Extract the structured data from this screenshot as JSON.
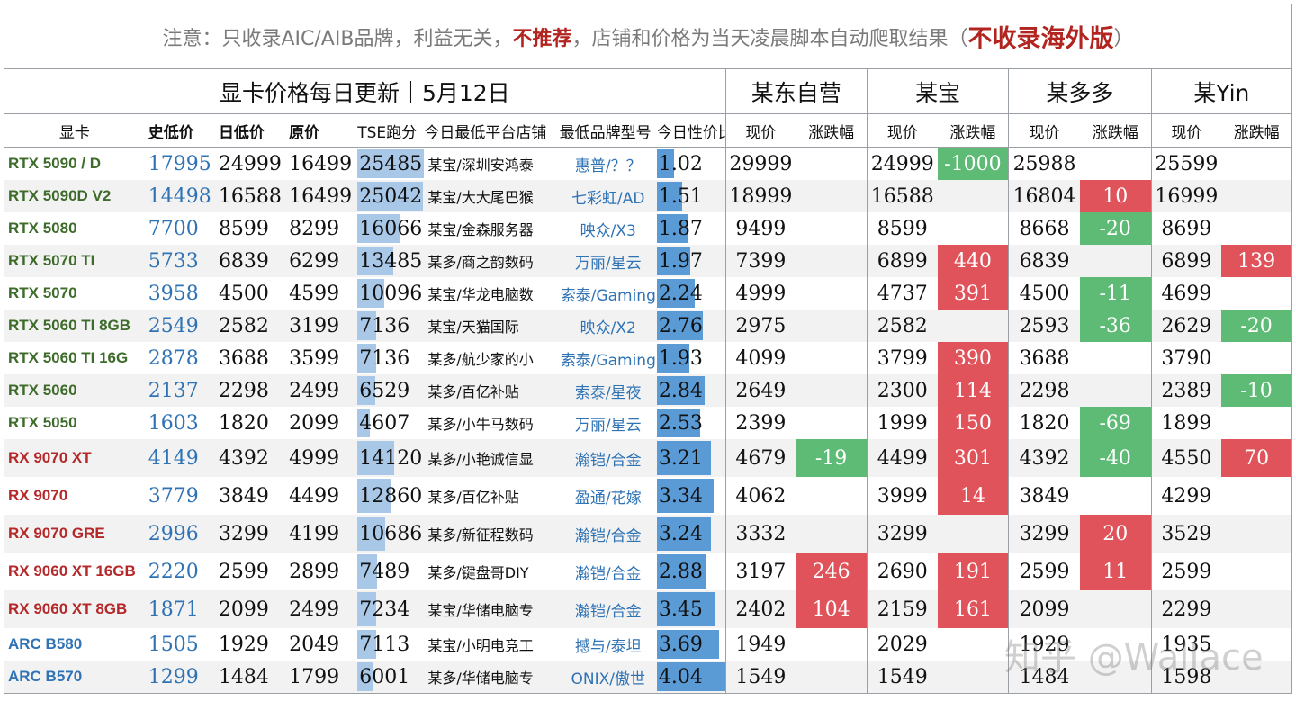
{
  "notice": {
    "part1": "注意：只收录AIC/AIB品牌，利益无关，",
    "part2": "不推荐",
    "part3": "，店铺和价格为当天凌晨脚本自动爬取结果（",
    "part4": "不收录海外版",
    "part5": "）"
  },
  "header": {
    "title": "显卡价格每日更新｜5月12日",
    "platforms": [
      "某东自营",
      "某宝",
      "某多多",
      "某Yin"
    ]
  },
  "columns": {
    "gpu": "显卡",
    "hist_low": "史低价",
    "day_low": "日低价",
    "msrp": "原价",
    "tse": "TSE跑分",
    "shop": "今日最低平台店铺",
    "brand": "最低品牌型号",
    "value": "今日性价比",
    "price": "现价",
    "change": "涨跌幅"
  },
  "colors": {
    "nvidia": "#3d6b2a",
    "amd": "#b5282a",
    "intel": "#2f73b5",
    "up": "#e0535a",
    "down": "#5dbb76",
    "bar": "#a9c8e8",
    "bar_dark": "#5b9bd5"
  },
  "rows": [
    {
      "gpu": "RTX 5090 / D",
      "vendor": "nv",
      "hist": "17995",
      "day": "24999",
      "msrp": "16499",
      "tse": "25485",
      "tse_fill": 1.0,
      "shop": "某宝/深圳安鸿泰",
      "brand": "惠普/？？",
      "value": "1.02",
      "value_fill": 0.25,
      "jd": "29999",
      "jd_chg": "",
      "tb": "24999",
      "tb_chg": "-1000",
      "tb_dir": "down",
      "pdd": "25988",
      "pdd_chg": "",
      "yin": "25599",
      "yin_chg": ""
    },
    {
      "gpu": "RTX 5090D V2",
      "vendor": "nv",
      "hist": "14498",
      "day": "16588",
      "msrp": "16499",
      "tse": "25042",
      "tse_fill": 0.98,
      "shop": "某宝/大大尾巴猴",
      "brand": "七彩虹/AD",
      "value": "1.51",
      "value_fill": 0.37,
      "jd": "18999",
      "jd_chg": "",
      "tb": "16588",
      "tb_chg": "",
      "pdd": "16804",
      "pdd_chg": "10",
      "pdd_dir": "up",
      "yin": "16999",
      "yin_chg": ""
    },
    {
      "gpu": "RTX 5080",
      "vendor": "nv",
      "hist": "7700",
      "day": "8599",
      "msrp": "8299",
      "tse": "16066",
      "tse_fill": 0.63,
      "shop": "某宝/金森服务器",
      "brand": "映众/X3",
      "value": "1.87",
      "value_fill": 0.46,
      "jd": "9499",
      "jd_chg": "",
      "tb": "8599",
      "tb_chg": "",
      "pdd": "8668",
      "pdd_chg": "-20",
      "pdd_dir": "down",
      "yin": "8699",
      "yin_chg": ""
    },
    {
      "gpu": "RTX 5070 TI",
      "vendor": "nv",
      "hist": "5733",
      "day": "6839",
      "msrp": "6299",
      "tse": "13485",
      "tse_fill": 0.53,
      "shop": "某多/商之韵数码",
      "brand": "万丽/星云",
      "value": "1.97",
      "value_fill": 0.49,
      "jd": "7399",
      "jd_chg": "",
      "tb": "6899",
      "tb_chg": "440",
      "tb_dir": "up",
      "pdd": "6839",
      "pdd_chg": "",
      "yin": "6899",
      "yin_chg": "139",
      "yin_dir": "up"
    },
    {
      "gpu": "RTX 5070",
      "vendor": "nv",
      "hist": "3958",
      "day": "4500",
      "msrp": "4599",
      "tse": "10096",
      "tse_fill": 0.4,
      "shop": "某宝/华龙电脑数",
      "brand": "索泰/Gaming",
      "value": "2.24",
      "value_fill": 0.55,
      "jd": "4999",
      "jd_chg": "",
      "tb": "4737",
      "tb_chg": "391",
      "tb_dir": "up",
      "pdd": "4500",
      "pdd_chg": "-11",
      "pdd_dir": "down",
      "yin": "4699",
      "yin_chg": ""
    },
    {
      "gpu": "RTX 5060 TI 8GB",
      "vendor": "nv",
      "hist": "2549",
      "day": "2582",
      "msrp": "3199",
      "tse": "7136",
      "tse_fill": 0.28,
      "shop": "某宝/天猫国际",
      "brand": "映众/X2",
      "value": "2.76",
      "value_fill": 0.68,
      "jd": "2975",
      "jd_chg": "",
      "tb": "2582",
      "tb_chg": "",
      "pdd": "2593",
      "pdd_chg": "-36",
      "pdd_dir": "down",
      "yin": "2629",
      "yin_chg": "-20",
      "yin_dir": "down"
    },
    {
      "gpu": "RTX 5060 TI 16G",
      "vendor": "nv",
      "hist": "2878",
      "day": "3688",
      "msrp": "3599",
      "tse": "7136",
      "tse_fill": 0.28,
      "shop": "某多/航少家的小",
      "brand": "索泰/Gaming",
      "value": "1.93",
      "value_fill": 0.48,
      "jd": "4099",
      "jd_chg": "",
      "tb": "3799",
      "tb_chg": "390",
      "tb_dir": "up",
      "pdd": "3688",
      "pdd_chg": "",
      "yin": "3790",
      "yin_chg": ""
    },
    {
      "gpu": "RTX 5060",
      "vendor": "nv",
      "hist": "2137",
      "day": "2298",
      "msrp": "2499",
      "tse": "6529",
      "tse_fill": 0.26,
      "shop": "某多/百亿补贴",
      "brand": "索泰/星夜",
      "value": "2.84",
      "value_fill": 0.7,
      "jd": "2649",
      "jd_chg": "",
      "tb": "2300",
      "tb_chg": "114",
      "tb_dir": "up",
      "pdd": "2298",
      "pdd_chg": "",
      "yin": "2389",
      "yin_chg": "-10",
      "yin_dir": "down"
    },
    {
      "gpu": "RTX 5050",
      "vendor": "nv",
      "hist": "1603",
      "day": "1820",
      "msrp": "2099",
      "tse": "4607",
      "tse_fill": 0.18,
      "shop": "某多/小牛马数码",
      "brand": "万丽/星云",
      "value": "2.53",
      "value_fill": 0.63,
      "jd": "2399",
      "jd_chg": "",
      "tb": "1999",
      "tb_chg": "150",
      "tb_dir": "up",
      "pdd": "1820",
      "pdd_chg": "-69",
      "pdd_dir": "down",
      "yin": "1899",
      "yin_chg": ""
    },
    {
      "gpu": "RX 9070 XT",
      "vendor": "amd",
      "hist": "4149",
      "day": "4392",
      "msrp": "4999",
      "tse": "14120",
      "tse_fill": 0.55,
      "shop": "某多/小艳诚信显",
      "brand": "瀚铠/合金",
      "value": "3.21",
      "value_fill": 0.79,
      "jd": "4679",
      "jd_chg": "-19",
      "jd_dir": "down",
      "tb": "4499",
      "tb_chg": "301",
      "tb_dir": "up",
      "pdd": "4392",
      "pdd_chg": "-40",
      "pdd_dir": "down",
      "yin": "4550",
      "yin_chg": "70",
      "yin_dir": "up"
    },
    {
      "gpu": "RX 9070",
      "vendor": "amd",
      "hist": "3779",
      "day": "3849",
      "msrp": "4499",
      "tse": "12860",
      "tse_fill": 0.5,
      "shop": "某多/百亿补贴",
      "brand": "盈通/花嫁",
      "value": "3.34",
      "value_fill": 0.83,
      "jd": "4062",
      "jd_chg": "",
      "tb": "3999",
      "tb_chg": "14",
      "tb_dir": "up",
      "pdd": "3849",
      "pdd_chg": "",
      "yin": "4299",
      "yin_chg": ""
    },
    {
      "gpu": "RX 9070 GRE",
      "vendor": "amd",
      "hist": "2996",
      "day": "3299",
      "msrp": "4199",
      "tse": "10686",
      "tse_fill": 0.42,
      "shop": "某多/新征程数码",
      "brand": "瀚铠/合金",
      "value": "3.24",
      "value_fill": 0.8,
      "jd": "3332",
      "jd_chg": "",
      "tb": "3299",
      "tb_chg": "",
      "pdd": "3299",
      "pdd_chg": "20",
      "pdd_dir": "up",
      "yin": "3529",
      "yin_chg": ""
    },
    {
      "gpu": "RX 9060 XT 16GB",
      "vendor": "amd",
      "hist": "2220",
      "day": "2599",
      "msrp": "2899",
      "tse": "7489",
      "tse_fill": 0.29,
      "shop": "某多/键盘哥DIY",
      "brand": "瀚铠/合金",
      "value": "2.88",
      "value_fill": 0.71,
      "jd": "3197",
      "jd_chg": "246",
      "jd_dir": "up",
      "tb": "2690",
      "tb_chg": "191",
      "tb_dir": "up",
      "pdd": "2599",
      "pdd_chg": "11",
      "pdd_dir": "up",
      "yin": "2599",
      "yin_chg": ""
    },
    {
      "gpu": "RX 9060 XT 8GB",
      "vendor": "amd",
      "hist": "1871",
      "day": "2099",
      "msrp": "2499",
      "tse": "7234",
      "tse_fill": 0.28,
      "shop": "某宝/华储电脑专",
      "brand": "瀚铠/合金",
      "value": "3.45",
      "value_fill": 0.85,
      "jd": "2402",
      "jd_chg": "104",
      "jd_dir": "up",
      "tb": "2159",
      "tb_chg": "161",
      "tb_dir": "up",
      "pdd": "2099",
      "pdd_chg": "",
      "yin": "2299",
      "yin_chg": ""
    },
    {
      "gpu": "ARC B580",
      "vendor": "intel",
      "hist": "1505",
      "day": "1929",
      "msrp": "2049",
      "tse": "7113",
      "tse_fill": 0.28,
      "shop": "某宝/小明电竞工",
      "brand": "撼与/泰坦",
      "value": "3.69",
      "value_fill": 0.91,
      "jd": "1949",
      "jd_chg": "",
      "tb": "2029",
      "tb_chg": "",
      "pdd": "1929",
      "pdd_chg": "",
      "yin": "1935",
      "yin_chg": ""
    },
    {
      "gpu": "ARC B570",
      "vendor": "intel",
      "hist": "1299",
      "day": "1484",
      "msrp": "1799",
      "tse": "6001",
      "tse_fill": 0.24,
      "shop": "某多/华储电脑专",
      "brand": "ONIX/傲世",
      "value": "4.04",
      "value_fill": 1.0,
      "jd": "1549",
      "jd_chg": "",
      "tb": "1549",
      "tb_chg": "",
      "pdd": "1484",
      "pdd_chg": "",
      "yin": "1598",
      "yin_chg": ""
    }
  ],
  "watermark": "知乎 @Wallace"
}
